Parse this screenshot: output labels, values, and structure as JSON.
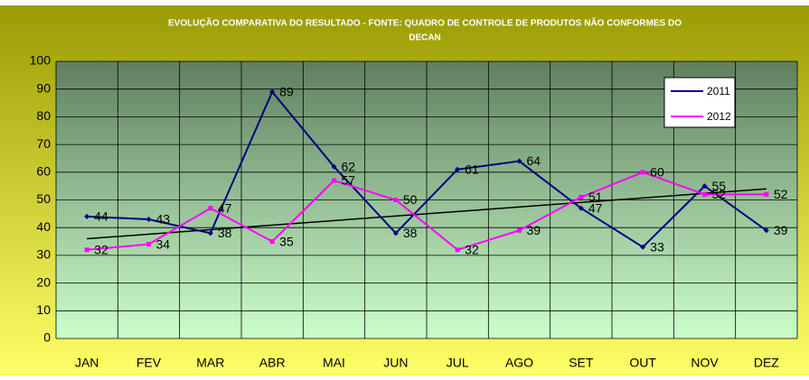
{
  "chart_data": {
    "type": "line",
    "title": [
      "EVOLUÇÃO COMPARATIVA DO RESULTADO - FONTE: QUADRO DE CONTROLE DE PRODUTOS NÃO CONFORMES DO",
      "DECAN"
    ],
    "categories": [
      "JAN",
      "FEV",
      "MAR",
      "ABR",
      "MAI",
      "JUN",
      "JUL",
      "AGO",
      "SET",
      "OUT",
      "NOV",
      "DEZ"
    ],
    "series": [
      {
        "name": "2011",
        "color": "#000080",
        "values": [
          44,
          43,
          38,
          89,
          62,
          38,
          61,
          64,
          47,
          33,
          55,
          39
        ]
      },
      {
        "name": "2012",
        "color": "#ff00ff",
        "values": [
          32,
          34,
          47,
          35,
          57,
          50,
          32,
          39,
          51,
          60,
          52,
          52
        ]
      }
    ],
    "trend": {
      "color": "#000000",
      "from": 36,
      "to": 54
    },
    "ylim": [
      0,
      100
    ],
    "yticks": [
      0,
      10,
      20,
      30,
      40,
      50,
      60,
      70,
      80,
      90,
      100
    ],
    "grid": true,
    "legend": "upper right"
  }
}
